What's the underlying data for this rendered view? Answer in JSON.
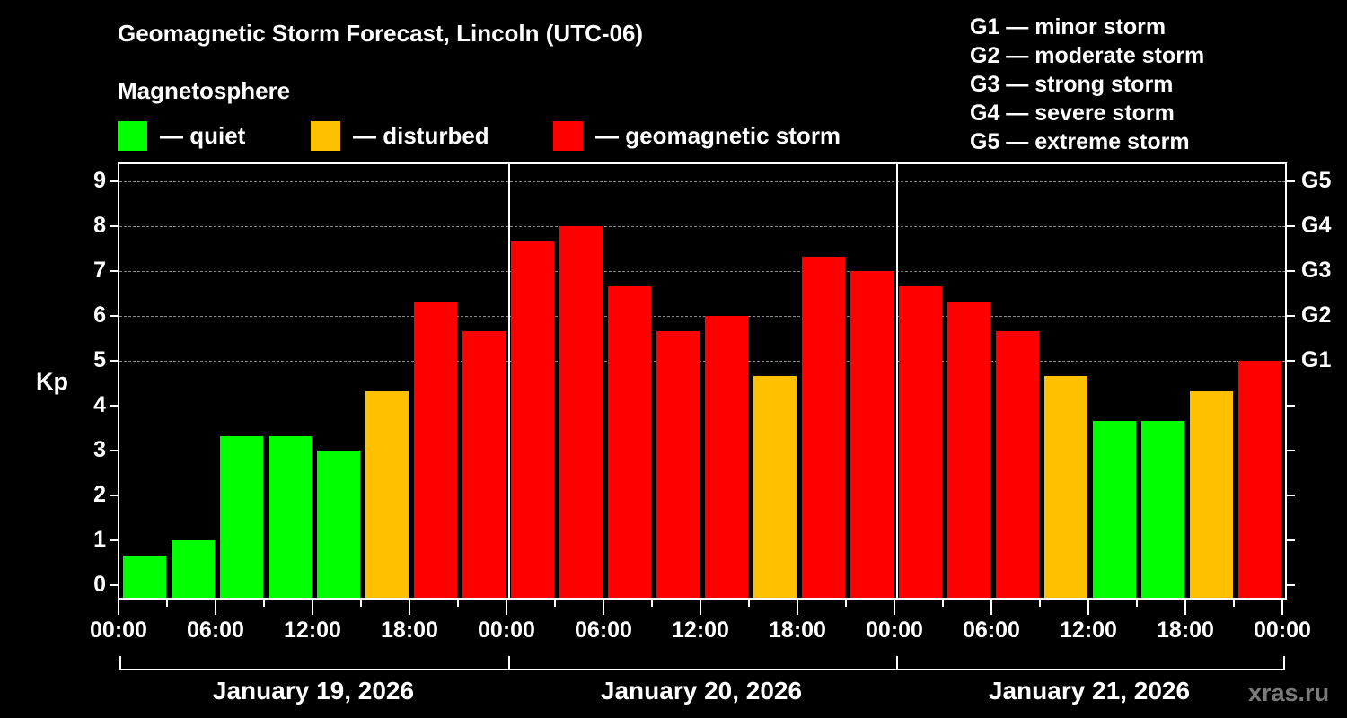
{
  "header": {
    "title": "Geomagnetic Storm Forecast, Lincoln (UTC-06)",
    "subtitle": "Magnetosphere"
  },
  "legend": {
    "quiet": {
      "label": "— quiet",
      "color": "#00ff00"
    },
    "disturbed": {
      "label": "— disturbed",
      "color": "#ffc000"
    },
    "storm": {
      "label": "— geomagnetic storm",
      "color": "#ff0000"
    }
  },
  "g_legend": [
    "G1 — minor storm",
    "G2 — moderate storm",
    "G3 — strong storm",
    "G4 — severe storm",
    "G5 — extreme storm"
  ],
  "axis": {
    "ylabel": "Kp",
    "yticks": [
      "0",
      "1",
      "2",
      "3",
      "4",
      "5",
      "6",
      "7",
      "8",
      "9"
    ],
    "right_ticks": {
      "5": "G1",
      "6": "G2",
      "7": "G3",
      "8": "G4",
      "9": "G5"
    },
    "xticks": [
      "00:00",
      "06:00",
      "12:00",
      "18:00",
      "00:00",
      "06:00",
      "12:00",
      "18:00",
      "00:00",
      "06:00",
      "12:00",
      "18:00",
      "00:00"
    ],
    "dates": [
      "January 19, 2026",
      "January 20, 2026",
      "January 21, 2026"
    ]
  },
  "watermark": "xras.ru",
  "chart_data": {
    "type": "bar",
    "title": "Geomagnetic Storm Forecast, Lincoln (UTC-06)",
    "xlabel": "",
    "ylabel": "Kp",
    "ylim": [
      0,
      9
    ],
    "grid": "dashed horizontal at Kp 5-9",
    "categories": [
      "Jan 19 00-03",
      "Jan 19 03-06",
      "Jan 19 06-09",
      "Jan 19 09-12",
      "Jan 19 12-15",
      "Jan 19 15-18",
      "Jan 19 18-21",
      "Jan 19 21-24",
      "Jan 20 00-03",
      "Jan 20 03-06",
      "Jan 20 06-09",
      "Jan 20 09-12",
      "Jan 20 12-15",
      "Jan 20 15-18",
      "Jan 20 18-21",
      "Jan 20 21-24",
      "Jan 21 00-03",
      "Jan 21 03-06",
      "Jan 21 06-09",
      "Jan 21 09-12",
      "Jan 21 12-15",
      "Jan 21 15-18",
      "Jan 21 18-21",
      "Jan 21 21-24"
    ],
    "values": [
      0.67,
      1.0,
      3.33,
      3.33,
      3.0,
      4.33,
      6.33,
      5.67,
      7.67,
      8.0,
      6.67,
      5.67,
      6.0,
      4.67,
      7.33,
      7.0,
      6.67,
      6.33,
      5.67,
      4.67,
      3.67,
      3.67,
      4.33,
      5.0
    ],
    "status": [
      "quiet",
      "quiet",
      "quiet",
      "quiet",
      "quiet",
      "disturbed",
      "storm",
      "storm",
      "storm",
      "storm",
      "storm",
      "storm",
      "storm",
      "disturbed",
      "storm",
      "storm",
      "storm",
      "storm",
      "storm",
      "disturbed",
      "quiet",
      "quiet",
      "disturbed",
      "storm"
    ],
    "legend": [
      "quiet",
      "disturbed",
      "geomagnetic storm"
    ],
    "legend_position": "top"
  }
}
